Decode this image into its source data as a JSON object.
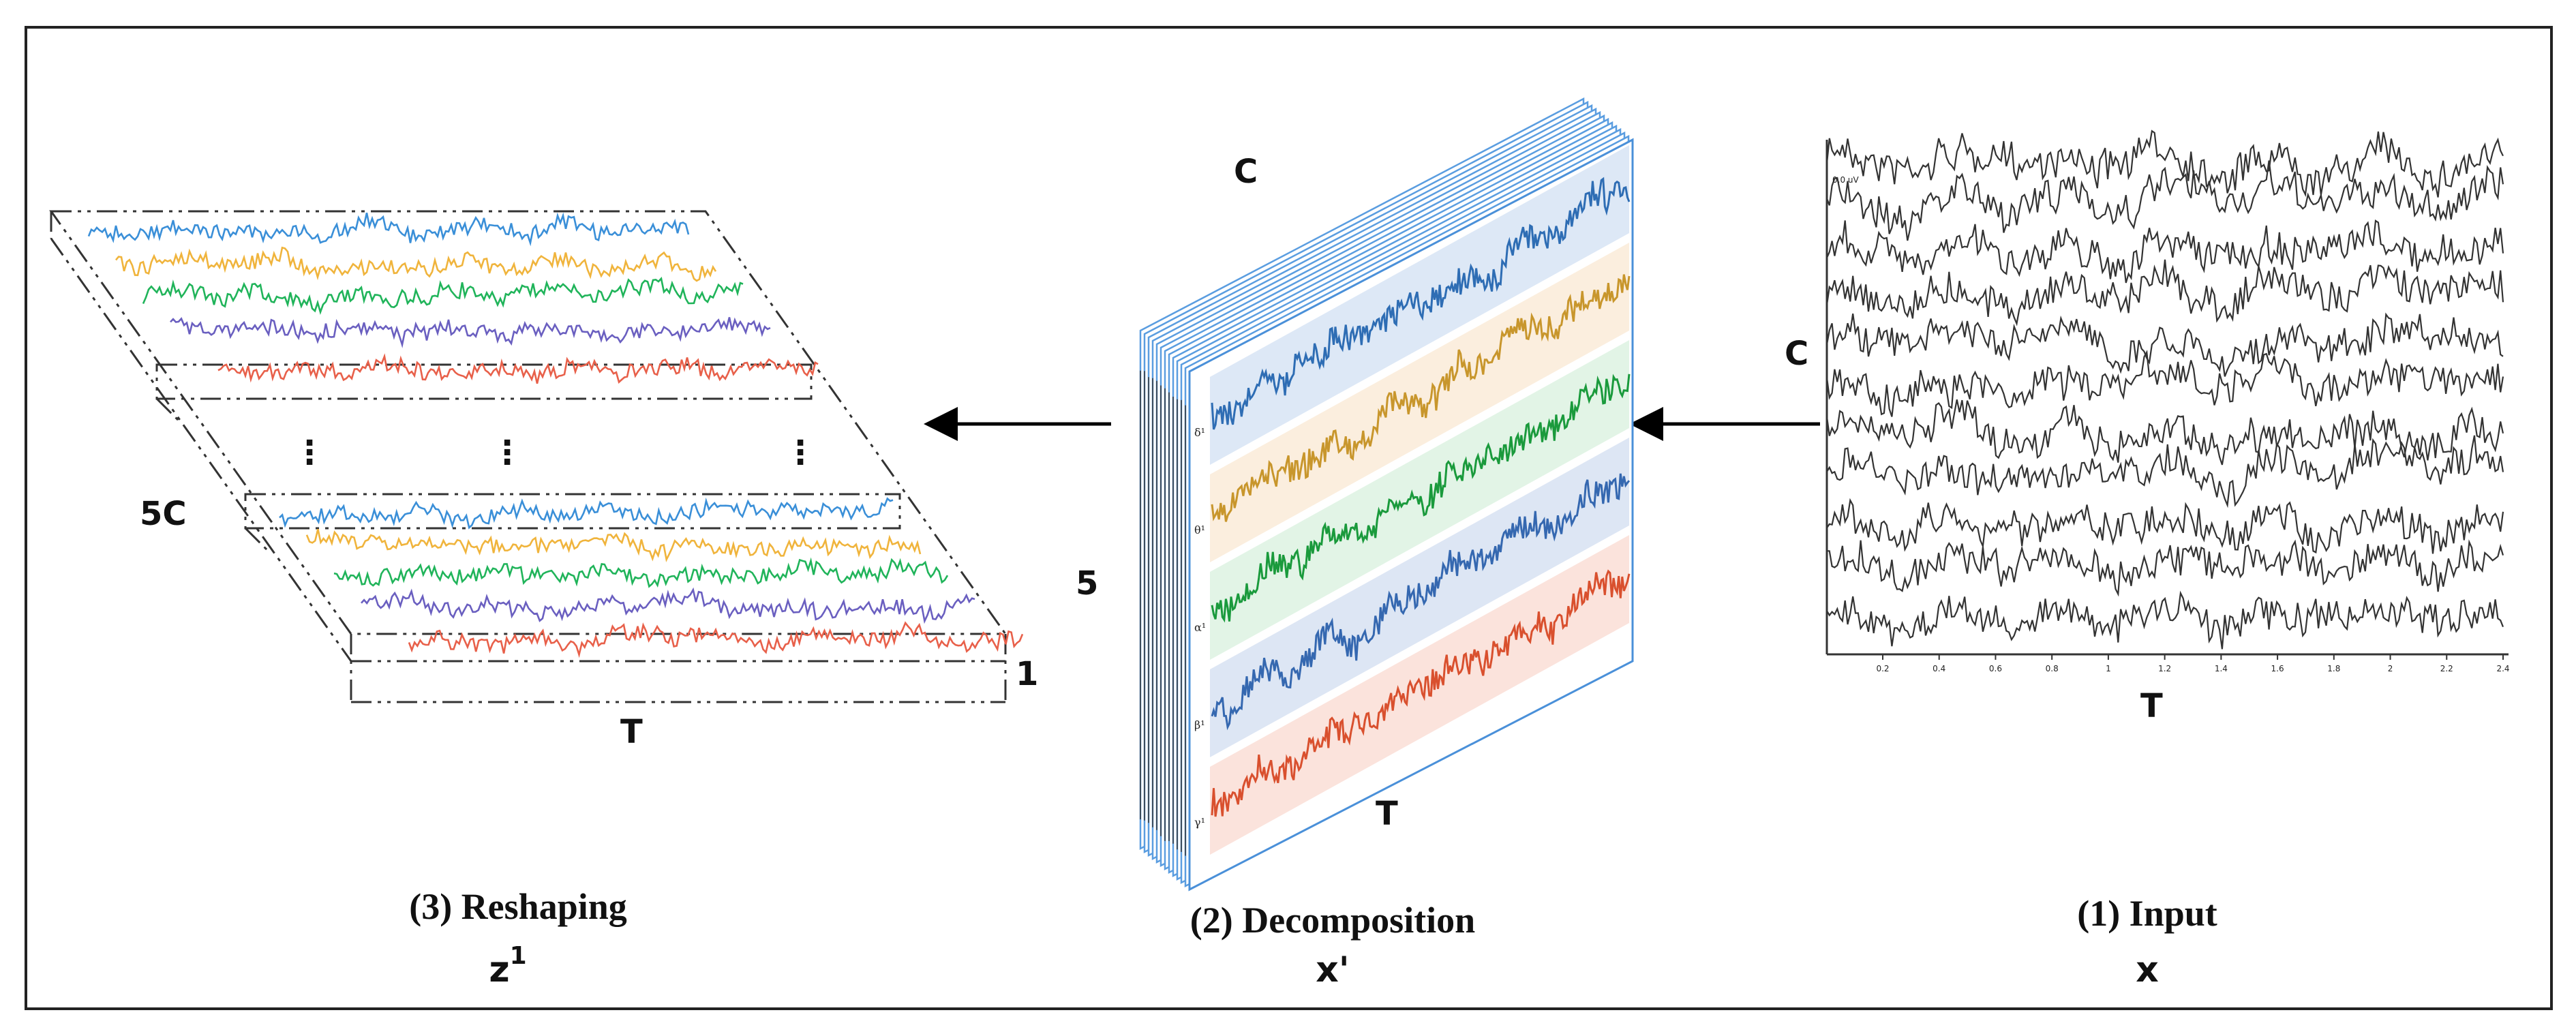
{
  "figure": {
    "panels": [
      {
        "id": "input",
        "caption": "(1) Input",
        "symbol": "x"
      },
      {
        "id": "decomposition",
        "caption": "(2) Decomposition",
        "symbol": "x'"
      },
      {
        "id": "reshaping",
        "caption": "(3) Reshaping",
        "symbol": "z",
        "symbol_sup": "1"
      }
    ]
  },
  "input_panel": {
    "channel_label": "C",
    "time_label": "T",
    "corner_label": "0.0 uV",
    "x_ticks": [
      "0.2",
      "0.4",
      "0.6",
      "0.8",
      "1",
      "1.2",
      "1.4",
      "1.6",
      "1.8",
      "2",
      "2.2",
      "2.4"
    ],
    "trace_count": 11
  },
  "decomposition_panel": {
    "channel_label": "C",
    "band_count_label": "5",
    "time_label": "T",
    "bands": [
      {
        "label": "δ¹",
        "color": "#2e6db4",
        "bg": "#dde8f6"
      },
      {
        "label": "θ¹",
        "color": "#c8962c",
        "bg": "#fbeede"
      },
      {
        "label": "α¹",
        "color": "#1a9a3c",
        "bg": "#e2f4e6"
      },
      {
        "label": "β¹",
        "color": "#3568b0",
        "bg": "#dde6f4"
      },
      {
        "label": "γ¹",
        "color": "#d9502e",
        "bg": "#fbe3dc"
      }
    ]
  },
  "reshaping_panel": {
    "height_label": "5C",
    "depth_label": "1",
    "time_label": "T",
    "ellipsis": "⋮",
    "colors": [
      "#3a8fd8",
      "#f0b43c",
      "#20b45a",
      "#6a5fc0",
      "#e8604a"
    ]
  }
}
